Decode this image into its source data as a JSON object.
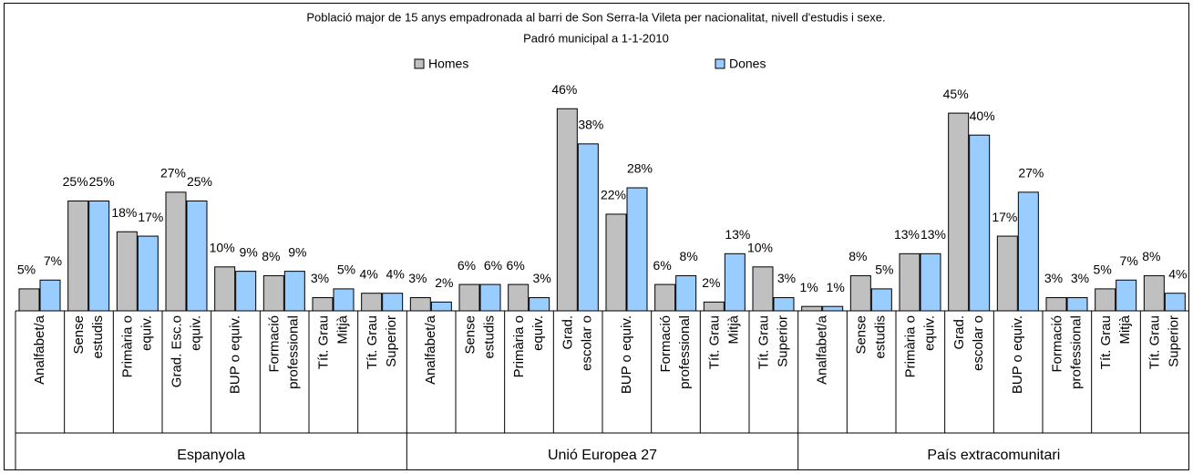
{
  "chart_data": {
    "type": "bar",
    "title": "Població major de 15 anys empadronada al barri de Son Serra-la Vileta per nacionalitat, nivell d'estudis i sexe.",
    "subtitle": "Padró municipal a 1-1-2010",
    "groups": [
      {
        "name": "Espanyola",
        "categories": [
          [
            "Analfabet/a"
          ],
          [
            "Sense",
            "estudis"
          ],
          [
            "Primària o",
            "equiv."
          ],
          [
            "Grad. Esc.o",
            "equiv."
          ],
          [
            "BUP o equiv."
          ],
          [
            "Formació",
            "professional"
          ],
          [
            "Tít. Grau",
            "Mitjà"
          ],
          [
            "Tít. Grau",
            "Superior"
          ]
        ]
      },
      {
        "name": "Unió Europea 27",
        "categories": [
          [
            "Analfabet/a"
          ],
          [
            "Sense",
            "estudis"
          ],
          [
            "Primària o",
            "equiv."
          ],
          [
            "Grad.",
            "escolar o"
          ],
          [
            "BUP o equiv."
          ],
          [
            "Formació",
            "professional"
          ],
          [
            "Tít. Grau",
            "Mitjà"
          ],
          [
            "Tít. Grau",
            "Superior"
          ]
        ]
      },
      {
        "name": "País extracomunitari",
        "categories": [
          [
            "Analfabet/a"
          ],
          [
            "Sense",
            "estudis"
          ],
          [
            "Primària o",
            "equiv."
          ],
          [
            "Grad.",
            "escolar o"
          ],
          [
            "BUP o equiv."
          ],
          [
            "Formació",
            "professional"
          ],
          [
            "Tít. Grau",
            "Mitjà"
          ],
          [
            "Tít. Grau",
            "Superior"
          ]
        ]
      }
    ],
    "series": [
      {
        "name": "Homes",
        "color": "#c0c0c0",
        "values": [
          5,
          25,
          18,
          27,
          10,
          8,
          3,
          4,
          3,
          6,
          6,
          46,
          22,
          6,
          2,
          10,
          1,
          8,
          13,
          45,
          17,
          3,
          5,
          8
        ],
        "value_labels": [
          "5%",
          "25%",
          "18%",
          "27%",
          "10%",
          "8%",
          "3%",
          "4%",
          "3%",
          "6%",
          "6%",
          "46%",
          "22%",
          "6%",
          "2%",
          "10%",
          "1%",
          "8%",
          "13%",
          "45%",
          "17%",
          "3%",
          "5%",
          "8%"
        ]
      },
      {
        "name": "Dones",
        "color": "#99ccff",
        "values": [
          7,
          25,
          17,
          25,
          9,
          9,
          5,
          4,
          2,
          6,
          3,
          38,
          28,
          8,
          13,
          3,
          1,
          5,
          13,
          40,
          27,
          3,
          7,
          4
        ],
        "value_labels": [
          "7%",
          "25%",
          "17%",
          "25%",
          "9%",
          "9%",
          "5%",
          "4%",
          "2%",
          "6%",
          "3%",
          "38%",
          "28%",
          "8%",
          "13%",
          "3%",
          "1%",
          "5%",
          "13%",
          "40%",
          "27%",
          "3%",
          "7%",
          "4%"
        ]
      }
    ],
    "ylim": [
      0,
      50
    ],
    "legend": "top"
  }
}
